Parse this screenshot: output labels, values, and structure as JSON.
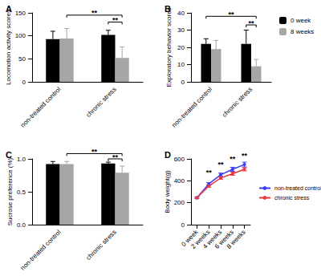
{
  "chart_data": [
    {
      "type": "bar",
      "panel": "A",
      "ylabel": "Locomotion activity scores",
      "categories": [
        "non-treated control",
        "chronic stress"
      ],
      "series": [
        {
          "name": "0 week",
          "color": "#000000",
          "values": [
            93,
            102
          ],
          "errors": [
            17,
            10
          ]
        },
        {
          "name": "8 weeks",
          "color": "#a6a6a6",
          "values": [
            94,
            52
          ],
          "errors": [
            22,
            24
          ]
        }
      ],
      "ylim": [
        0,
        150
      ],
      "yticks": [
        0,
        50,
        100,
        150
      ],
      "grid": false,
      "annotations": [
        {
          "from": [
            0,
            1
          ],
          "to": [
            1,
            1
          ],
          "y": 145,
          "label": "**"
        },
        {
          "from": [
            1,
            0
          ],
          "to": [
            1,
            1
          ],
          "y": 130,
          "label": "**"
        }
      ]
    },
    {
      "type": "bar",
      "panel": "B",
      "ylabel": "Exploratory behavior scores",
      "categories": [
        "non-treated control",
        "chronic stress"
      ],
      "series": [
        {
          "name": "0 week",
          "color": "#000000",
          "values": [
            22,
            22
          ],
          "errors": [
            3,
            8
          ]
        },
        {
          "name": "8 weeks",
          "color": "#a6a6a6",
          "values": [
            19,
            9
          ],
          "errors": [
            5,
            4
          ]
        }
      ],
      "ylim": [
        0,
        40
      ],
      "yticks": [
        0,
        10,
        20,
        30,
        40
      ],
      "grid": false,
      "legend": "upper right",
      "annotations": [
        {
          "from": [
            0,
            0
          ],
          "to": [
            1,
            1
          ],
          "y": 38,
          "label": "**"
        },
        {
          "from": [
            1,
            0
          ],
          "to": [
            1,
            1
          ],
          "y": 33,
          "label": "**"
        }
      ]
    },
    {
      "type": "bar",
      "panel": "C",
      "ylabel": "Sucrose preference (%)",
      "categories": [
        "non-treated control",
        "chronic stress"
      ],
      "series": [
        {
          "name": "0 week",
          "color": "#000000",
          "values": [
            0.92,
            0.93
          ],
          "errors": [
            0.04,
            0.02
          ]
        },
        {
          "name": "8 weeks",
          "color": "#a6a6a6",
          "values": [
            0.92,
            0.79
          ],
          "errors": [
            0.04,
            0.1
          ]
        }
      ],
      "ylim": [
        0,
        1
      ],
      "yticks": [
        {
          "value": 0,
          "label": "0.0"
        },
        {
          "value": 0.5,
          "label": "0.5"
        },
        {
          "value": 1,
          "label": "1.0"
        }
      ],
      "grid": false,
      "annotations": [
        {
          "from": [
            0,
            1
          ],
          "to": [
            1,
            1
          ],
          "y": 1.08,
          "label": "**"
        },
        {
          "from": [
            1,
            0
          ],
          "to": [
            1,
            1
          ],
          "y": 1.0,
          "label": "**"
        }
      ]
    },
    {
      "type": "line",
      "panel": "D",
      "ylabel": "Body weight(g)",
      "categories": [
        "0 week",
        "2 weeks",
        "4 weeks",
        "6 weeks",
        "8 weeks"
      ],
      "series": [
        {
          "name": "non-treated control",
          "color": "#3a3aff",
          "marker": "circle",
          "values": [
            245,
            372,
            455,
            505,
            548
          ],
          "errors": [
            8,
            12,
            15,
            18,
            22
          ]
        },
        {
          "name": "chronic stress",
          "color": "#e8383d",
          "marker": "circle",
          "values": [
            245,
            352,
            425,
            465,
            505
          ],
          "errors": [
            8,
            12,
            12,
            15,
            15
          ]
        }
      ],
      "ylim": [
        0,
        600
      ],
      "yticks": [
        0,
        200,
        400,
        600
      ],
      "grid": false,
      "legend": "right",
      "annotations": [
        {
          "category": 1,
          "y": 445,
          "label": "**"
        },
        {
          "category": 2,
          "y": 515,
          "label": "**"
        },
        {
          "category": 3,
          "y": 565,
          "label": "**"
        },
        {
          "category": 4,
          "y": 600,
          "label": "**"
        }
      ]
    }
  ]
}
